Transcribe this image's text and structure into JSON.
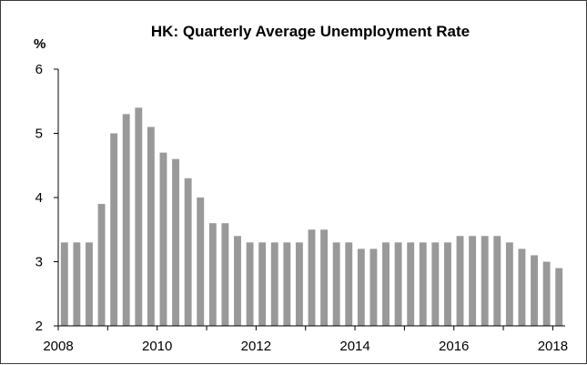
{
  "chart_data": {
    "type": "bar",
    "title": "HK: Quarterly Average Unemployment Rate",
    "ylabel": "%",
    "xlabel": "",
    "bar_color": "#999999",
    "axis_color": "#000000",
    "grid": false,
    "legend": "none",
    "x_range": [
      2008,
      2018.25
    ],
    "ylim": [
      2,
      6
    ],
    "y_ticks": [
      2,
      3,
      4,
      5,
      6
    ],
    "x_tick_labels": [
      "2008",
      "2010",
      "2012",
      "2014",
      "2016",
      "2018"
    ],
    "x_tick_values": [
      2008,
      2010,
      2012,
      2014,
      2016,
      2018
    ],
    "quarters": [
      "2008 Q1",
      "2008 Q2",
      "2008 Q3",
      "2008 Q4",
      "2009 Q1",
      "2009 Q2",
      "2009 Q3",
      "2009 Q4",
      "2010 Q1",
      "2010 Q2",
      "2010 Q3",
      "2010 Q4",
      "2011 Q1",
      "2011 Q2",
      "2011 Q3",
      "2011 Q4",
      "2012 Q1",
      "2012 Q2",
      "2012 Q3",
      "2012 Q4",
      "2013 Q1",
      "2013 Q2",
      "2013 Q3",
      "2013 Q4",
      "2014 Q1",
      "2014 Q2",
      "2014 Q3",
      "2014 Q4",
      "2015 Q1",
      "2015 Q2",
      "2015 Q3",
      "2015 Q4",
      "2016 Q1",
      "2016 Q2",
      "2016 Q3",
      "2016 Q4",
      "2017 Q1",
      "2017 Q2",
      "2017 Q3",
      "2017 Q4",
      "2018 Q1"
    ],
    "values": [
      3.3,
      3.3,
      3.3,
      3.9,
      5.0,
      5.3,
      5.4,
      5.1,
      4.7,
      4.6,
      4.3,
      4.0,
      3.6,
      3.6,
      3.4,
      3.3,
      3.3,
      3.3,
      3.3,
      3.3,
      3.5,
      3.5,
      3.3,
      3.3,
      3.2,
      3.2,
      3.3,
      3.3,
      3.3,
      3.3,
      3.3,
      3.3,
      3.4,
      3.4,
      3.4,
      3.4,
      3.3,
      3.2,
      3.1,
      3.0,
      2.9
    ]
  }
}
